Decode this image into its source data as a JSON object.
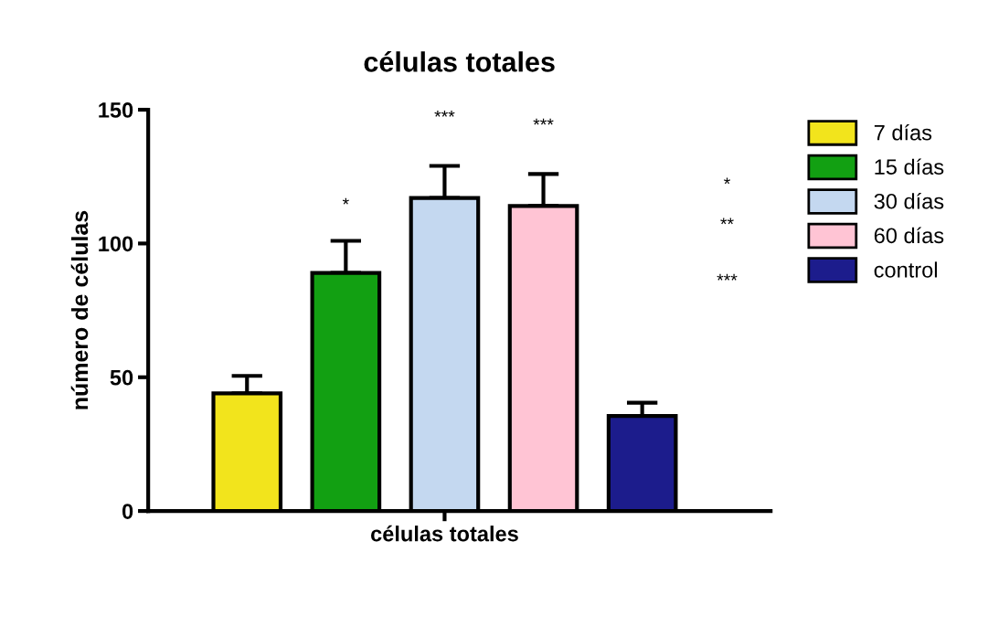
{
  "chart_data": {
    "type": "bar",
    "title": "células totales",
    "ylabel": "número de células",
    "categories": [
      "células totales"
    ],
    "series": [
      {
        "name": "7 días",
        "color": "#f2e41c",
        "values": [
          44
        ],
        "errors": [
          [
            44,
            50.5
          ]
        ]
      },
      {
        "name": "15 días",
        "color": "#12a012",
        "values": [
          89
        ],
        "errors": [
          [
            89,
            101
          ]
        ]
      },
      {
        "name": "30 días",
        "color": "#c4d8f0",
        "values": [
          117
        ],
        "errors": [
          [
            117,
            129
          ]
        ]
      },
      {
        "name": "60 días",
        "color": "#ffc4d4",
        "values": [
          114
        ],
        "errors": [
          [
            114,
            126
          ]
        ]
      },
      {
        "name": "control",
        "color": "#1c1c8c",
        "values": [
          35.5
        ],
        "errors": [
          [
            35.5,
            40.5
          ]
        ]
      }
    ],
    "ylim": [
      0,
      150
    ],
    "yticks": [
      0,
      50,
      100,
      150
    ],
    "grid": false,
    "legend": "right",
    "annotations": [
      "*",
      "***",
      "***",
      "*",
      "**",
      "***"
    ]
  }
}
